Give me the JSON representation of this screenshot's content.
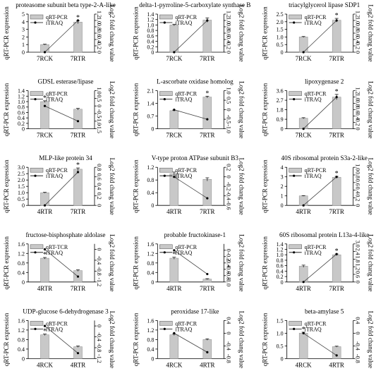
{
  "chart_data": [
    {
      "type": "bar",
      "title": "proteasome subunit beta type-2-A-like",
      "categories": [
        "7RCK",
        "7RTR"
      ],
      "values": [
        1.0,
        3.95
      ],
      "errors": [
        0.05,
        0.2
      ],
      "sig": [
        false,
        true
      ],
      "ylim": [
        0,
        5
      ],
      "yticks": [
        "0",
        "1",
        "2",
        "3",
        "4",
        "5"
      ],
      "ylabel": "qRT-PCR expression",
      "y2label": "Log2 fold chang value",
      "y2lim": [
        0,
        1.2
      ],
      "y2ticks": [
        "0",
        "0.2",
        "0.4",
        "0.6",
        "0.8",
        "1.0",
        "1.2"
      ],
      "line": [
        0.0,
        1.0
      ],
      "legend": [
        "qRT-PCR",
        "iTRAQ"
      ]
    },
    {
      "type": "bar",
      "title": "delta-1-pyrroline-5-carboxylate synthase B",
      "categories": [
        "7RCK",
        "7RTR"
      ],
      "values": [
        1.0,
        1.18
      ],
      "errors": [
        0.03,
        0.08
      ],
      "sig": [
        false,
        false
      ],
      "ylim": [
        0,
        1.4
      ],
      "yticks": [
        "0",
        "0.2",
        "0.4",
        "0.6",
        "0.8",
        "1.0",
        "1.2",
        "1.4"
      ],
      "ylabel": "qRT-PCR expression",
      "y2label": "Log2 fold chang value",
      "y2lim": [
        0,
        1.2
      ],
      "y2ticks": [
        "0",
        "0.2",
        "0.4",
        "0.6",
        "0.8",
        "1.0",
        "1.2"
      ],
      "line": [
        0.0,
        1.0
      ],
      "legend": [
        "qRT-PCR",
        "iTRAQ"
      ]
    },
    {
      "type": "bar",
      "title": "triacylglycerol lipase SDP1",
      "categories": [
        "7RCK",
        "7RTR"
      ],
      "values": [
        1.0,
        2.1
      ],
      "errors": [
        0.03,
        0.12
      ],
      "sig": [
        false,
        true
      ],
      "ylim": [
        0,
        2.5
      ],
      "yticks": [
        "0",
        "0.5",
        "1.0",
        "1.5",
        "2.0",
        "2.5"
      ],
      "ylabel": "qRT-PCR expression",
      "y2label": "Log2 fold chang value",
      "y2lim": [
        0,
        1.2
      ],
      "y2ticks": [
        "0",
        "0.2",
        "0.4",
        "0.6",
        "0.8",
        "1.0",
        "1.2"
      ],
      "line": [
        0.0,
        1.0
      ],
      "legend": [
        "qRT-PCR",
        "iTRAQ"
      ]
    },
    {
      "type": "bar",
      "title": "GDSL esterase/lipase",
      "categories": [
        "7RCK",
        "7RTR"
      ],
      "values": [
        1.0,
        0.72
      ],
      "errors": [
        0.03,
        0.03
      ],
      "sig": [
        true,
        false
      ],
      "ylim": [
        0,
        1.4
      ],
      "yticks": [
        "0",
        "0.2",
        "0.4",
        "0.6",
        "0.8",
        "1.0",
        "1.2",
        "1.4"
      ],
      "ylabel": "qRT-PCR expression",
      "y2label": "Log2 fold chang value",
      "y2lim": [
        -1.5,
        1.0
      ],
      "y2ticks": [
        "-1.5",
        "-1.0",
        "-0.5",
        "0",
        "0.5",
        "1.0"
      ],
      "line": [
        0.0,
        -1.0
      ],
      "legend": [
        "qRT-PCR",
        "iTRAQ"
      ]
    },
    {
      "type": "bar",
      "title": "L-ascorbate oxidase homolog",
      "categories": [
        "7RCK",
        "7RTR"
      ],
      "values": [
        1.0,
        1.75
      ],
      "errors": [
        0.03,
        0.05
      ],
      "sig": [
        false,
        true
      ],
      "ylim": [
        0,
        2.1
      ],
      "yticks": [
        "0",
        "0.7",
        "1.4",
        "2.1"
      ],
      "ylabel": "qRT-PCR expression",
      "y2label": "Log2 fold chang value",
      "y2lim": [
        -1.0,
        1.0
      ],
      "y2ticks": [
        "-1.0",
        "-0.5",
        "0",
        "0.5",
        "1.0"
      ],
      "line": [
        0.0,
        -0.5
      ],
      "legend": [
        "qRT-PCR",
        "iTRAQ"
      ]
    },
    {
      "type": "bar",
      "title": "lipoxygenase 2",
      "categories": [
        "7RCK",
        "7RTR"
      ],
      "values": [
        1.0,
        3.0
      ],
      "errors": [
        0.05,
        0.25
      ],
      "sig": [
        false,
        true
      ],
      "ylim": [
        0,
        3.6
      ],
      "yticks": [
        "0",
        "0.9",
        "1.8",
        "2.7",
        "3.6"
      ],
      "ylabel": "qRT-PCR expression",
      "y2label": "Log2 fold chang value",
      "y2lim": [
        0,
        1.2
      ],
      "y2ticks": [
        "0",
        "0.2",
        "0.4",
        "0.6",
        "0.8",
        "1.0",
        "1.2"
      ],
      "line": [
        0.0,
        1.0
      ],
      "legend": [
        "qRT-PCR",
        "iTRAQ"
      ]
    },
    {
      "type": "bar",
      "title": "MLP-like protein 34",
      "categories": [
        "4RTR",
        "7RTR"
      ],
      "values": [
        1.0,
        2.85
      ],
      "errors": [
        0.03,
        0.1
      ],
      "sig": [
        false,
        true
      ],
      "ylim": [
        0,
        3.0
      ],
      "yticks": [
        "0",
        "0.5",
        "1.0",
        "1.5",
        "2.0",
        "2.5",
        "3.0"
      ],
      "ylabel": "qRT-PCR expression",
      "y2label": "Log2 fold chang value",
      "y2lim": [
        0,
        0.8
      ],
      "y2ticks": [
        "0",
        "0.2",
        "0.4",
        "0.6",
        "0.8"
      ],
      "line": [
        0.0,
        0.7
      ],
      "legend": [
        "qRT-PCR",
        "iTRAQ"
      ]
    },
    {
      "type": "bar",
      "title": "V-type proton ATPase subunit B3",
      "categories": [
        "4RTR",
        "7RTR"
      ],
      "values": [
        1.0,
        0.82
      ],
      "errors": [
        0.05,
        0.05
      ],
      "sig": [
        false,
        false
      ],
      "ylim": [
        0,
        1.2
      ],
      "yticks": [
        "0",
        "0.4",
        "0.8",
        "1.2"
      ],
      "ylabel": "qRT-PCR expression",
      "y2label": "Log2 fold chang value",
      "y2lim": [
        -0.6,
        0.2
      ],
      "y2ticks": [
        "-0.6",
        "-0.4",
        "-0.2",
        "0",
        "0.2"
      ],
      "line": [
        0.0,
        -0.45
      ],
      "legend": [
        "qRT-PCR",
        "iTRAQ"
      ]
    },
    {
      "type": "bar",
      "title": "40S ribosomal protein S3a-2-like",
      "categories": [
        "4RTR",
        "7RTR"
      ],
      "values": [
        1.0,
        2.95
      ],
      "errors": [
        0.03,
        0.1
      ],
      "sig": [
        false,
        true
      ],
      "ylim": [
        0,
        4
      ],
      "yticks": [
        "0",
        "1",
        "2",
        "3",
        "4"
      ],
      "ylabel": "qRT-PCR expression",
      "y2label": "Log2 fold chang value",
      "y2lim": [
        0,
        1.0
      ],
      "y2ticks": [
        "0",
        "0.2",
        "0.4",
        "0.6",
        "0.8",
        "1.0"
      ],
      "line": [
        0.0,
        0.75
      ],
      "legend": [
        "qRT-PCR",
        "iTRAQ"
      ]
    },
    {
      "type": "bar",
      "title": "fructose-bisphosphate aldolase",
      "categories": [
        "4RTR",
        "7RTR"
      ],
      "values": [
        1.0,
        0.48
      ],
      "errors": [
        0.03,
        0.03
      ],
      "sig": [
        true,
        false
      ],
      "ylim": [
        0,
        1.6
      ],
      "yticks": [
        "0",
        "0.4",
        "0.8",
        "1.2",
        "1.6"
      ],
      "ylabel": "qRT-PCR expression",
      "y2label": "Log2 fold chang value",
      "y2lim": [
        -1.2,
        0.2
      ],
      "y2ticks": [
        "-1.2",
        "-0.8",
        "-0.4",
        "0"
      ],
      "line": [
        0.0,
        -1.0
      ],
      "legend": [
        "qRT-TCR",
        "iTRAQ"
      ]
    },
    {
      "type": "bar",
      "title": "probable fructokinase-1",
      "categories": [
        "4RTR",
        "7RTR"
      ],
      "values": [
        1.0,
        0.12
      ],
      "errors": [
        0.04,
        0.02
      ],
      "sig": [
        true,
        false
      ],
      "ylim": [
        0,
        1.6
      ],
      "yticks": [
        "0",
        "0.4",
        "0.8",
        "1.2",
        "1.6"
      ],
      "ylabel": "qRT-PCR expression",
      "y2label": "Log2 fold chang value",
      "y2lim": [
        -1.0,
        0.2
      ],
      "y2ticks": [
        "-1.0",
        "-0.8",
        "-0.6",
        "-0.4",
        "-0.2",
        "0"
      ],
      "line": [
        0.0,
        -0.75
      ],
      "legend": [
        "qRT-PCR",
        "iTRAQ"
      ]
    },
    {
      "type": "bar",
      "title": "60S ribosomal protein L13a-4-like",
      "categories": [
        "4RTR",
        "7RTR"
      ],
      "values": [
        0.58,
        1.0
      ],
      "errors": [
        0.04,
        0.03
      ],
      "sig": [
        false,
        true
      ],
      "ylim": [
        0,
        1.4
      ],
      "yticks": [
        "0",
        "0.2",
        "0.4",
        "0.6",
        "0.8",
        "1.0",
        "1.2",
        "1.4"
      ],
      "ylabel": "qRT-PCR expression",
      "y2label": "Log2 fold chang value",
      "y2lim": [
        0,
        3.0
      ],
      "y2ticks": [
        "0",
        "0.6",
        "1.2",
        "1.8",
        "2.4",
        "3.0"
      ],
      "line": [
        0.0,
        2.2
      ],
      "legend": [
        "qRT-PCR",
        "iTRAQ"
      ]
    },
    {
      "type": "bar",
      "title": "UDP-glucose 6-dehydrogenase 3",
      "categories": [
        "4RCK",
        "4RTR"
      ],
      "values": [
        1.0,
        0.5
      ],
      "errors": [
        0.03,
        0.03
      ],
      "sig": [
        true,
        false
      ],
      "ylim": [
        0,
        1.6
      ],
      "yticks": [
        "0",
        "0.4",
        "0.8",
        "1.2",
        "1.6"
      ],
      "ylabel": "qRT-PCR expression",
      "y2label": "Log2 fold chang value",
      "y2lim": [
        -1.2,
        0.2
      ],
      "y2ticks": [
        "-1.2",
        "-0.8",
        "-0.4",
        "0"
      ],
      "line": [
        0.0,
        -1.0
      ],
      "legend": [
        "qRT-PCR",
        "iTRAQ"
      ]
    },
    {
      "type": "bar",
      "title": "peroxidase 17-like",
      "categories": [
        "4RCK",
        "4RTR"
      ],
      "values": [
        1.0,
        0.8
      ],
      "errors": [
        0.03,
        0.03
      ],
      "sig": [
        false,
        false
      ],
      "ylim": [
        0,
        1.6
      ],
      "yticks": [
        "0",
        "0.4",
        "0.8",
        "1.2",
        "1.6"
      ],
      "ylabel": "qRT-PCR expression",
      "y2label": "Log2 fold chang value",
      "y2lim": [
        -0.8,
        0.4
      ],
      "y2ticks": [
        "-0.8",
        "-0.4",
        "0",
        "0.4"
      ],
      "line": [
        0.0,
        -0.6
      ],
      "legend": [
        "qRT-PCR",
        "iTRAQ"
      ]
    },
    {
      "type": "bar",
      "title": "beta-amylase 5",
      "categories": [
        "4RCK",
        "4RTR"
      ],
      "values": [
        1.0,
        0.47
      ],
      "errors": [
        0.04,
        0.02
      ],
      "sig": [
        true,
        false
      ],
      "ylim": [
        0,
        1.5
      ],
      "yticks": [
        "0",
        "0.5",
        "1.0",
        "1.5"
      ],
      "ylabel": "qRT-PCR expression",
      "y2label": "Log2 fold chang value",
      "y2lim": [
        -0.8,
        0.4
      ],
      "y2ticks": [
        "-0.8",
        "-0.4",
        "0",
        "0.4"
      ],
      "line": [
        0.0,
        -0.7
      ],
      "legend": [
        "qRT-PCR",
        "iTRAQ"
      ]
    }
  ]
}
